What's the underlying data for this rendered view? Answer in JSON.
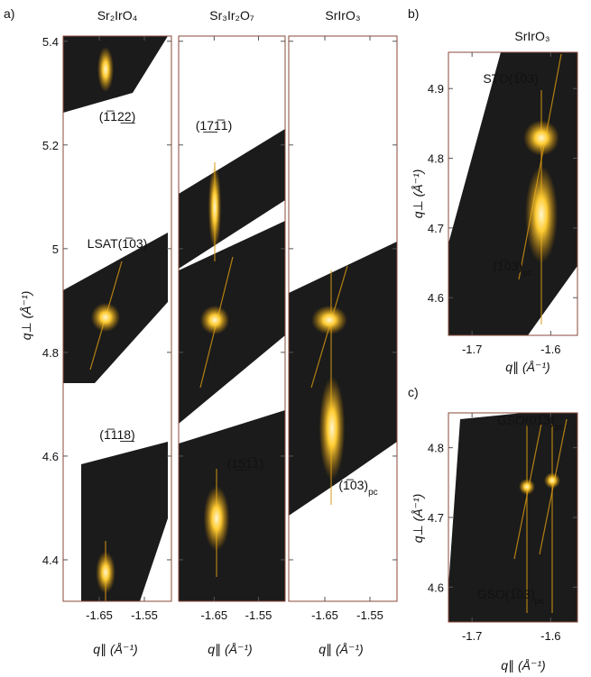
{
  "chart_data": [
    {
      "type": "map",
      "label": "a)",
      "title": "Sr₂IrO₄",
      "ylabel": "q⊥ (Å⁻¹)",
      "xlabel": "q∥ (Å⁻¹)",
      "xlim": [
        -1.73,
        -1.49
      ],
      "xticks": [
        -1.65,
        -1.55
      ],
      "ylim": [
        4.32,
        5.41
      ],
      "yticks": [
        4.4,
        4.6,
        4.8,
        5,
        5.2,
        5.4
      ],
      "annotations": [
        {
          "text": "(1̅12̲2̲)"
        },
        {
          "text": "LSAT(1̅03)"
        },
        {
          "text": "(1̅11̲8̲)"
        }
      ]
    },
    {
      "type": "map",
      "title": "Sr₃Ir₂O₇",
      "xlabel": "q∥ (Å⁻¹)",
      "xlim": [
        -1.73,
        -1.49
      ],
      "xticks": [
        -1.65,
        -1.55
      ],
      "ylim": [
        4.32,
        5.41
      ],
      "yticks": [
        4.4,
        4.6,
        4.8,
        5,
        5.2,
        5.4
      ],
      "annotations": [
        {
          "text": "(1̲7̲1̅1)"
        },
        {
          "text": "(1̲5̲1̅1)"
        }
      ]
    },
    {
      "type": "map",
      "title": "SrIrO₃",
      "xlabel": "q∥ (Å⁻¹)",
      "xlim": [
        -1.73,
        -1.49
      ],
      "xticks": [
        -1.65,
        -1.55
      ],
      "ylim": [
        4.32,
        5.41
      ],
      "yticks": [
        4.4,
        4.6,
        4.8,
        5,
        5.2,
        5.4
      ],
      "annotations": [
        {
          "text": "(1̅03)",
          "sub": "pc"
        }
      ]
    },
    {
      "type": "map",
      "label": "b)",
      "title": "SrIrO₃",
      "ylabel": "q⊥ (Å⁻¹)",
      "xlabel": "q∥ (Å⁻¹)",
      "xlim": [
        -1.73,
        -1.566
      ],
      "xticks": [
        -1.7,
        -1.6
      ],
      "ylim": [
        4.546,
        4.952
      ],
      "yticks": [
        4.6,
        4.7,
        4.8,
        4.9
      ],
      "annotations": [
        {
          "text": "STO(1̅03)"
        },
        {
          "text": "(1̅03)",
          "sub": "pc"
        }
      ]
    },
    {
      "type": "map",
      "label": "c)",
      "ylabel": "q⊥ (Å⁻¹)",
      "xlabel": "q∥ (Å⁻¹)",
      "xlim": [
        -1.73,
        -1.566
      ],
      "xticks": [
        -1.7,
        -1.6
      ],
      "ylim": [
        4.55,
        4.85
      ],
      "yticks": [
        4.6,
        4.7,
        4.8
      ],
      "annotations": [
        {
          "text": "GSO(01̅3)",
          "sub": "pc"
        },
        {
          "text": "GSO(1̅03)",
          "sub": "pc"
        }
      ]
    }
  ]
}
